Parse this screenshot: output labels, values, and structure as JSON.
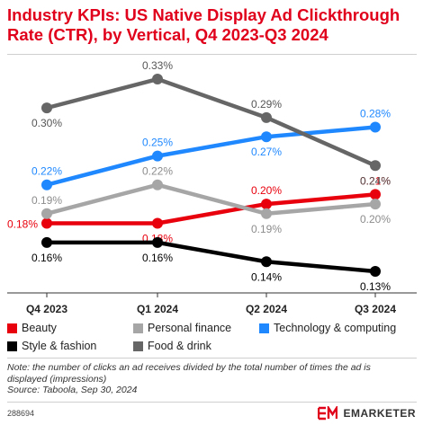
{
  "title": "Industry KPIs: US Native Display Ad Clickthrough Rate (CTR), by Vertical, Q4 2023-Q3 2024",
  "chart_data": {
    "type": "line",
    "categories": [
      "Q4 2023",
      "Q1 2024",
      "Q2 2024",
      "Q3 2024"
    ],
    "ylim": [
      0.115,
      0.345
    ],
    "grid": false,
    "legend": "bottom",
    "series": [
      {
        "name": "Beauty",
        "color": "#e8000d",
        "values": [
          0.18,
          0.18,
          0.2,
          0.21
        ],
        "labels": [
          "0.18%",
          "0.18%",
          "0.20%",
          "0.21%"
        ]
      },
      {
        "name": "Personal finance",
        "color": "#a6a6a6",
        "values": [
          0.19,
          0.22,
          0.19,
          0.2
        ],
        "labels": [
          "0.19%",
          "0.22%",
          "0.19%",
          "0.20%"
        ]
      },
      {
        "name": "Technology & computing",
        "color": "#1f88ff",
        "values": [
          0.22,
          0.25,
          0.27,
          0.28
        ],
        "labels": [
          "0.22%",
          "0.25%",
          "0.27%",
          "0.28%"
        ]
      },
      {
        "name": "Style & fashion",
        "color": "#000000",
        "values": [
          0.16,
          0.16,
          0.14,
          0.13
        ],
        "labels": [
          "0.16%",
          "0.16%",
          "0.14%",
          "0.13%"
        ]
      },
      {
        "name": "Food & drink",
        "color": "#666666",
        "values": [
          0.3,
          0.33,
          0.29,
          0.24
        ],
        "labels": [
          "0.30%",
          "0.33%",
          "0.29%",
          "0.24%"
        ]
      }
    ]
  },
  "note_lines": [
    "Note: the number of clicks an ad receives divided by the total number of times the ad is",
    "displayed (impressions)",
    "Source: Taboola, Sep 30, 2024"
  ],
  "chart_id": "288694",
  "brand": {
    "name": "EMARKETER",
    "logo_color": "#e0001b"
  }
}
